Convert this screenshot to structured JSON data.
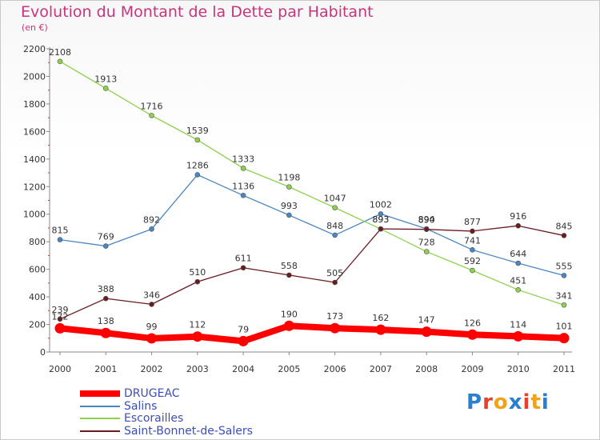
{
  "title": "Evolution du Montant de la Dette par Habitant",
  "subtitle": "(en €)",
  "logo": {
    "text": "Proxiti",
    "colors": [
      "#2b7fd1",
      "#e8402a",
      "#f0a21b",
      "#2b7fd1",
      "#e8402a",
      "#f0a21b",
      "#2b7fd1"
    ]
  },
  "chart_data": {
    "type": "line",
    "x": [
      "2000",
      "2001",
      "2002",
      "2003",
      "2004",
      "2005",
      "2006",
      "2007",
      "2008",
      "2009",
      "2010",
      "2011"
    ],
    "ylim": [
      0,
      2200
    ],
    "yticks": [
      0,
      200,
      400,
      600,
      800,
      1000,
      1200,
      1400,
      1600,
      1800,
      2000,
      2200
    ],
    "grid": false,
    "legend_position": "bottom-left",
    "series": [
      {
        "name": "DRUGEAC",
        "color": "#ff0000",
        "values": [
          172,
          138,
          99,
          112,
          79,
          190,
          173,
          162,
          147,
          126,
          114,
          101
        ]
      },
      {
        "name": "Salins",
        "color": "#4b86c2",
        "values": [
          815,
          769,
          892,
          1286,
          1136,
          993,
          848,
          1002,
          894,
          741,
          644,
          555
        ]
      },
      {
        "name": "Escorailles",
        "color": "#8fd14f",
        "values": [
          2108,
          1913,
          1716,
          1539,
          1333,
          1198,
          1047,
          893,
          728,
          592,
          451,
          341
        ]
      },
      {
        "name": "Saint-Bonnet-de-Salers",
        "color": "#6b1c20",
        "values": [
          239,
          388,
          346,
          510,
          611,
          558,
          505,
          893,
          890,
          877,
          916,
          845
        ]
      }
    ]
  }
}
